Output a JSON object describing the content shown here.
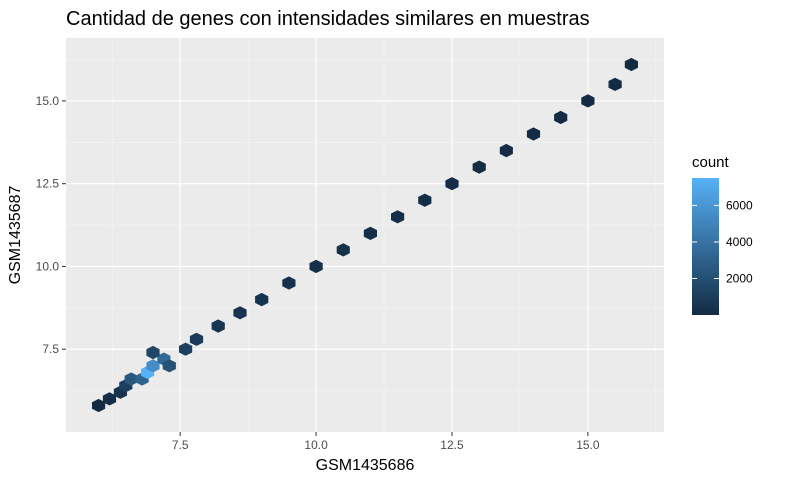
{
  "chart_data": {
    "type": "hexbin",
    "title": "Cantidad de genes con intensidades similares en muestras",
    "xlabel": "GSM1435686",
    "ylabel": "GSM1435687",
    "xlim": [
      5.4,
      16.4
    ],
    "ylim": [
      5.0,
      16.9
    ],
    "xticks": [
      7.5,
      10.0,
      12.5,
      15.0
    ],
    "xtick_labels": [
      "7.5",
      "10.0",
      "12.5",
      "15.0"
    ],
    "yticks": [
      7.5,
      10.0,
      12.5,
      15.0
    ],
    "ytick_labels": [
      "7.5",
      "10.0",
      "12.5",
      "15.0"
    ],
    "grid": true,
    "legend": {
      "title": "count",
      "breaks": [
        2000,
        4000,
        6000
      ],
      "break_labels": [
        "2000",
        "4000",
        "6000"
      ],
      "min": 1,
      "max": 7500,
      "low_color": "#132b43",
      "high_color": "#56b1f7",
      "position": "right"
    },
    "hexbins": [
      {
        "x": 6.0,
        "y": 5.8,
        "count": 40
      },
      {
        "x": 6.2,
        "y": 6.0,
        "count": 150
      },
      {
        "x": 6.4,
        "y": 6.2,
        "count": 500
      },
      {
        "x": 6.5,
        "y": 6.4,
        "count": 1200
      },
      {
        "x": 6.6,
        "y": 6.6,
        "count": 2500
      },
      {
        "x": 6.8,
        "y": 6.6,
        "count": 3000
      },
      {
        "x": 6.9,
        "y": 6.8,
        "count": 7500
      },
      {
        "x": 7.0,
        "y": 7.0,
        "count": 5500
      },
      {
        "x": 7.2,
        "y": 7.2,
        "count": 3500
      },
      {
        "x": 7.3,
        "y": 7.0,
        "count": 2200
      },
      {
        "x": 7.0,
        "y": 7.4,
        "count": 1500
      },
      {
        "x": 7.6,
        "y": 7.5,
        "count": 1200
      },
      {
        "x": 7.8,
        "y": 7.8,
        "count": 900
      },
      {
        "x": 8.2,
        "y": 8.2,
        "count": 600
      },
      {
        "x": 8.6,
        "y": 8.6,
        "count": 450
      },
      {
        "x": 9.0,
        "y": 9.0,
        "count": 380
      },
      {
        "x": 9.5,
        "y": 9.5,
        "count": 330
      },
      {
        "x": 10.0,
        "y": 10.0,
        "count": 300
      },
      {
        "x": 10.5,
        "y": 10.5,
        "count": 260
      },
      {
        "x": 11.0,
        "y": 11.0,
        "count": 220
      },
      {
        "x": 11.5,
        "y": 11.5,
        "count": 180
      },
      {
        "x": 12.0,
        "y": 12.0,
        "count": 150
      },
      {
        "x": 12.5,
        "y": 12.5,
        "count": 120
      },
      {
        "x": 13.0,
        "y": 13.0,
        "count": 90
      },
      {
        "x": 13.5,
        "y": 13.5,
        "count": 70
      },
      {
        "x": 14.0,
        "y": 14.0,
        "count": 50
      },
      {
        "x": 14.5,
        "y": 14.5,
        "count": 35
      },
      {
        "x": 15.0,
        "y": 15.0,
        "count": 20
      },
      {
        "x": 15.5,
        "y": 15.5,
        "count": 8
      },
      {
        "x": 15.8,
        "y": 16.1,
        "count": 1
      }
    ]
  }
}
